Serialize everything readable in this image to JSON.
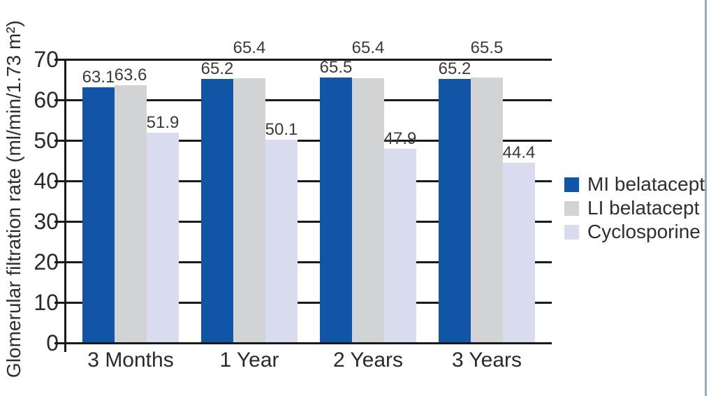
{
  "figure": {
    "ylabel": "Glomerular filtration rate (ml/min/1.73 m²)"
  },
  "chart_data": {
    "type": "bar",
    "title": "",
    "xlabel": "",
    "ylabel": "Glomerular filtration rate (ml/min/1.73 m²)",
    "categories": [
      "3 Months",
      "1 Year",
      "2 Years",
      "3 Years"
    ],
    "series": [
      {
        "name": "MI belatacept",
        "color": "#1156A6",
        "values": [
          63.1,
          65.2,
          65.5,
          65.2
        ],
        "labels_raised": [
          false,
          false,
          false,
          false
        ]
      },
      {
        "name": "LI belatacept",
        "color": "#D1D3D4",
        "values": [
          63.6,
          65.4,
          65.4,
          65.5
        ],
        "labels_raised": [
          false,
          true,
          true,
          true
        ]
      },
      {
        "name": "Cyclosporine",
        "color": "#D9DCEF",
        "values": [
          51.9,
          50.1,
          47.9,
          44.4
        ],
        "labels_raised": [
          false,
          false,
          false,
          false
        ]
      }
    ],
    "ylim": [
      0,
      70
    ],
    "yticks": [
      0,
      10,
      20,
      30,
      40,
      50,
      60,
      70
    ],
    "grid": true,
    "legend_position": "right"
  },
  "style": {
    "grid_color": "#1A1A1A",
    "text_color": "#2E2E2E",
    "page_right_border_color": "#8FAFC8"
  }
}
